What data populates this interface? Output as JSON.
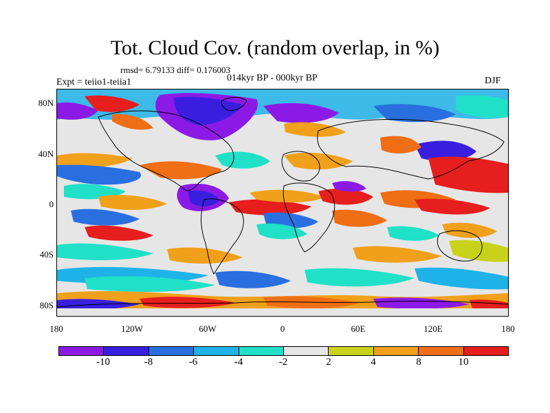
{
  "title": "Tot. Cloud Cov. (random overlap, in %)",
  "stats": "rmsd= 6.79133 diff= 0.176003",
  "experiment": "Expt = teiio1-teiia1",
  "period": "014kyr BP - 000kyr BP",
  "season": "DJF",
  "map": {
    "lat_labels": [
      "80N",
      "40N",
      "0",
      "40S",
      "80S"
    ],
    "lon_labels": [
      "180",
      "120W",
      "60W",
      "0",
      "60E",
      "120E",
      "180"
    ]
  },
  "colorbar": {
    "colors": [
      "#8c1ae6",
      "#3a1ee0",
      "#2a6fe0",
      "#1fb2e8",
      "#20e0c8",
      "#e6e6e6",
      "#c8d21a",
      "#f0a01a",
      "#f06e14",
      "#e61e1e"
    ],
    "labels": [
      "-10",
      "-8",
      "-6",
      "-4",
      "-2",
      "2",
      "4",
      "8",
      "10"
    ]
  }
}
